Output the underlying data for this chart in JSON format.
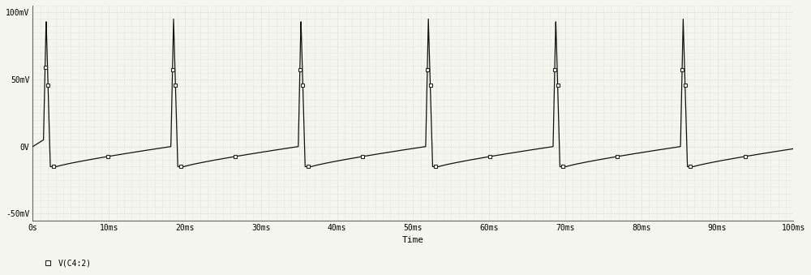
{
  "title": "",
  "xlabel": "Time",
  "ylabel": "",
  "xlim": [
    0,
    0.1
  ],
  "ylim": [
    -0.055,
    0.105
  ],
  "yticks": [
    -0.05,
    0.0,
    0.05,
    0.1
  ],
  "ytick_labels": [
    "-50mV",
    "0V",
    "50mV",
    "100mV"
  ],
  "xticks": [
    0,
    0.01,
    0.02,
    0.03,
    0.04,
    0.05,
    0.06,
    0.07,
    0.08,
    0.09,
    0.1
  ],
  "xtick_labels": [
    "0s",
    "10ms",
    "20ms",
    "30ms",
    "40ms",
    "50ms",
    "60ms",
    "70ms",
    "80ms",
    "90ms",
    "100ms"
  ],
  "line_color": "#111111",
  "bg_color": "#f5f5f0",
  "grid_color": "#aaaaaa",
  "legend_label": "V(C4:2)",
  "marker_color": "#222222",
  "spike_times": [
    0.00175,
    0.0185,
    0.03525,
    0.052,
    0.06875,
    0.0855
  ],
  "v_peak": 0.095,
  "v_trough": -0.015,
  "v_thresh": 0.0,
  "rise_time": 0.00035,
  "fall_time": 0.00055,
  "trough_time": 0.0008
}
